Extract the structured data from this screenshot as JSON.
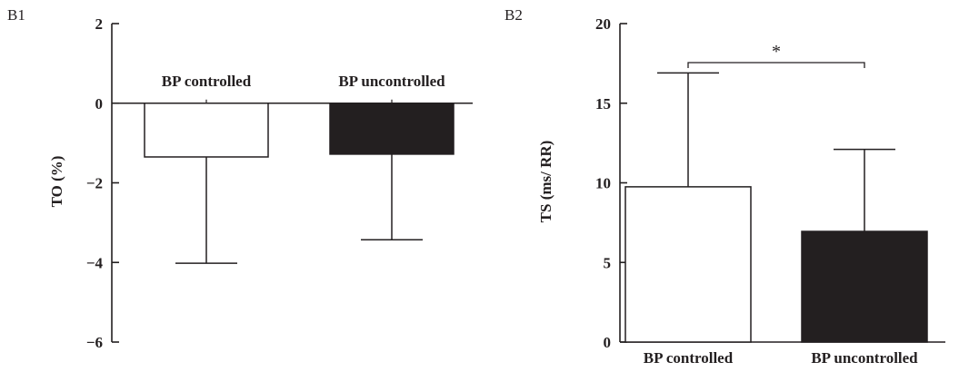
{
  "chart_data": [
    {
      "type": "bar",
      "panel_label": "B1",
      "ylabel": "TO (%)",
      "ylim": [
        -6,
        2
      ],
      "yticks": [
        -6,
        -4,
        -2,
        0,
        2
      ],
      "ytick_labels": [
        "−6",
        "−4",
        "−2",
        "0",
        "2"
      ],
      "categories": [
        "BP controlled",
        "BP uncontrolled"
      ],
      "values": [
        -1.35,
        -1.28
      ],
      "error": [
        2.67,
        2.15
      ],
      "error_direction": "down",
      "colors": [
        "#ffffff",
        "#231f20"
      ],
      "category_label_position": "top"
    },
    {
      "type": "bar",
      "panel_label": "B2",
      "ylabel": "TS (ms/ RR)",
      "ylim": [
        0,
        20
      ],
      "yticks": [
        0,
        5,
        10,
        15,
        20
      ],
      "ytick_labels": [
        "0",
        "5",
        "10",
        "15",
        "20"
      ],
      "categories": [
        "BP controlled",
        "BP uncontrolled"
      ],
      "values": [
        9.75,
        6.95
      ],
      "error": [
        7.15,
        5.15
      ],
      "error_direction": "up",
      "colors": [
        "#ffffff",
        "#231f20"
      ],
      "category_label_position": "bottom",
      "significance": {
        "between": [
          0,
          1
        ],
        "label": "*"
      }
    }
  ]
}
